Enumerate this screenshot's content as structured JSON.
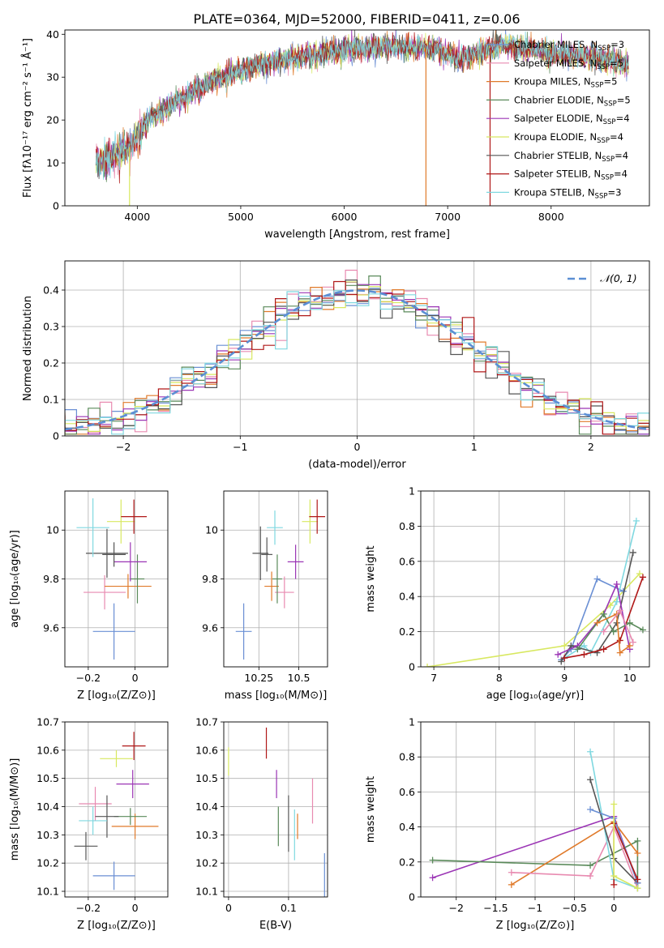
{
  "figure_title": "PLATE=0364, MJD=52000, FIBERID=0411, z=0.06",
  "colors": {
    "chabrier_miles": "#6a8fd4",
    "salpeter_miles": "#e88ab0",
    "kroupa_miles": "#e07a2a",
    "chabrier_elodie": "#5a8a5a",
    "salpeter_elodie": "#9b35b5",
    "kroupa_elodie": "#d8e860",
    "chabrier_stelib": "#555555",
    "salpeter_stelib": "#b01818",
    "kroupa_stelib": "#7fd8e0",
    "normal": "#5b8fd4"
  },
  "chart_data": [
    {
      "id": "spectrum",
      "type": "line",
      "xlabel": "wavelength [Angstrom, rest frame]",
      "ylabel": "Flux [fλ10⁻¹⁷ erg cm⁻² s⁻¹ Å⁻¹]",
      "xlim": [
        3300,
        8950
      ],
      "ylim": [
        0,
        41
      ],
      "xticks": [
        4000,
        5000,
        6000,
        7000,
        8000
      ],
      "yticks": [
        0,
        10,
        20,
        30,
        40
      ],
      "grid": false,
      "legend_position": "right",
      "continuum": {
        "x": [
          3600,
          3800,
          3950,
          4100,
          4300,
          4500,
          4800,
          5000,
          5200,
          5500,
          5800,
          6000,
          6300,
          6600,
          6900,
          7100,
          7300,
          7500,
          7800,
          8000,
          8200,
          8500,
          8700
        ],
        "y": [
          10,
          12,
          14,
          20,
          23,
          26,
          30,
          31.5,
          33,
          34.5,
          35.5,
          36.5,
          37,
          37,
          36.5,
          34,
          36,
          37.5,
          36.5,
          35.5,
          35,
          34.5,
          33
        ]
      },
      "spikes": [
        {
          "x": 3925,
          "y": 0
        },
        {
          "x": 6790,
          "y": 0
        },
        {
          "x": 7410,
          "y": 0
        }
      ],
      "series": [
        {
          "name": "Chabrier MILES, N$_{SSP}$=3",
          "label_main": "Chabrier MILES, N",
          "label_sub": "SSP",
          "label_end": "=3",
          "color_key": "chabrier_miles"
        },
        {
          "name": "Salpeter MILES, N$_{SSP}$=5",
          "label_main": "Salpeter MILES, N",
          "label_sub": "SSP",
          "label_end": "=5",
          "color_key": "salpeter_miles"
        },
        {
          "name": "Kroupa MILES, N$_{SSP}$=5",
          "label_main": "Kroupa MILES, N",
          "label_sub": "SSP",
          "label_end": "=5",
          "color_key": "kroupa_miles"
        },
        {
          "name": "Chabrier ELODIE, N$_{SSP}$=5",
          "label_main": "Chabrier ELODIE, N",
          "label_sub": "SSP",
          "label_end": "=5",
          "color_key": "chabrier_elodie"
        },
        {
          "name": "Salpeter ELODIE, N$_{SSP}$=4",
          "label_main": "Salpeter ELODIE, N",
          "label_sub": "SSP",
          "label_end": "=4",
          "color_key": "salpeter_elodie"
        },
        {
          "name": "Kroupa ELODIE, N$_{SSP}$=4",
          "label_main": "Kroupa ELODIE, N",
          "label_sub": "SSP",
          "label_end": "=4",
          "color_key": "kroupa_elodie"
        },
        {
          "name": "Chabrier STELIB, N$_{SSP}$=4",
          "label_main": "Chabrier STELIB, N",
          "label_sub": "SSP",
          "label_end": "=4",
          "color_key": "chabrier_stelib"
        },
        {
          "name": "Salpeter STELIB, N$_{SSP}$=4",
          "label_main": "Salpeter STELIB, N",
          "label_sub": "SSP",
          "label_end": "=4",
          "color_key": "salpeter_stelib"
        },
        {
          "name": "Kroupa STELIB, N$_{SSP}$=3",
          "label_main": "Kroupa STELIB, N",
          "label_sub": "SSP",
          "label_end": "=3",
          "color_key": "kroupa_stelib"
        }
      ]
    },
    {
      "id": "residuals",
      "type": "histogram",
      "xlabel": "(data-model)/error",
      "ylabel": "Normed distribution",
      "xlim": [
        -2.5,
        2.5
      ],
      "ylim": [
        0,
        0.48
      ],
      "xticks": [
        -2,
        -1,
        0,
        1,
        2
      ],
      "yticks": [
        0.0,
        0.1,
        0.2,
        0.3,
        0.4
      ],
      "grid": true,
      "bin_width": 0.1,
      "legend": {
        "label": "𝒩(0, 1)",
        "position": "top-right",
        "style": "dashed",
        "color_key": "normal"
      },
      "model": {
        "type": "gaussian",
        "mean": 0,
        "sigma": 1
      }
    },
    {
      "id": "age_vs_Z",
      "type": "errorbar",
      "xlabel": "Z [log₁₀(Z/Z⊙)]",
      "ylabel": "age  [log₁₀(age/yr)]",
      "xlim": [
        -0.3,
        0.14
      ],
      "ylim": [
        9.44,
        10.16
      ],
      "xticks": [
        -0.2,
        0.0
      ],
      "yticks": [
        9.6,
        9.8,
        10.0
      ],
      "grid": true,
      "points": [
        {
          "color_key": "chabrier_miles",
          "x": -0.09,
          "xerr": 0.09,
          "y": 9.585,
          "yerr": 0.115
        },
        {
          "color_key": "salpeter_miles",
          "x": -0.13,
          "xerr": 0.09,
          "y": 9.745,
          "yerr": 0.07
        },
        {
          "color_key": "kroupa_miles",
          "x": -0.03,
          "xerr": 0.1,
          "y": 9.77,
          "yerr": 0.05
        },
        {
          "color_key": "chabrier_elodie",
          "x": 0.01,
          "xerr": 0.03,
          "y": 9.8,
          "yerr": 0.1
        },
        {
          "color_key": "salpeter_elodie",
          "x": -0.02,
          "xerr": 0.07,
          "y": 9.87,
          "yerr": 0.08
        },
        {
          "color_key": "kroupa_elodie",
          "x": -0.06,
          "xerr": 0.06,
          "y": 10.035,
          "yerr": 0.09
        },
        {
          "color_key": "chabrier_stelib",
          "x": -0.09,
          "xerr": 0.05,
          "y": 9.9,
          "yerr": 0.05
        },
        {
          "color_key": "chabrier_stelib",
          "x": -0.12,
          "xerr": 0.09,
          "y": 9.905,
          "yerr": 0.1
        },
        {
          "color_key": "salpeter_stelib",
          "x": -0.005,
          "xerr": 0.055,
          "y": 10.055,
          "yerr": 0.07
        },
        {
          "color_key": "kroupa_stelib",
          "x": -0.18,
          "xerr": 0.07,
          "y": 10.01,
          "yerr": 0.12
        }
      ]
    },
    {
      "id": "age_vs_mass",
      "type": "errorbar",
      "xlabel": "mass [log₁₀(M/M⊙)]",
      "ylabel": "",
      "xlim": [
        10.03,
        10.68
      ],
      "ylim": [
        9.44,
        10.16
      ],
      "xticks": [
        10.25,
        10.5
      ],
      "yticks": [
        9.6,
        9.8,
        10.0
      ],
      "grid": true,
      "points": [
        {
          "color_key": "chabrier_miles",
          "x": 10.155,
          "xerr": 0.05,
          "y": 9.585,
          "yerr": 0.115
        },
        {
          "color_key": "salpeter_miles",
          "x": 10.41,
          "xerr": 0.06,
          "y": 9.745,
          "yerr": 0.065
        },
        {
          "color_key": "kroupa_miles",
          "x": 10.33,
          "xerr": 0.045,
          "y": 9.77,
          "yerr": 0.06
        },
        {
          "color_key": "chabrier_elodie",
          "x": 10.365,
          "xerr": 0.03,
          "y": 9.8,
          "yerr": 0.1
        },
        {
          "color_key": "salpeter_elodie",
          "x": 10.48,
          "xerr": 0.05,
          "y": 9.87,
          "yerr": 0.07
        },
        {
          "color_key": "kroupa_elodie",
          "x": 10.57,
          "xerr": 0.05,
          "y": 10.035,
          "yerr": 0.09
        },
        {
          "color_key": "chabrier_stelib",
          "x": 10.3,
          "xerr": 0.035,
          "y": 9.9,
          "yerr": 0.07
        },
        {
          "color_key": "chabrier_stelib",
          "x": 10.26,
          "xerr": 0.05,
          "y": 9.905,
          "yerr": 0.11
        },
        {
          "color_key": "salpeter_stelib",
          "x": 10.615,
          "xerr": 0.05,
          "y": 10.055,
          "yerr": 0.07
        },
        {
          "color_key": "kroupa_stelib",
          "x": 10.35,
          "xerr": 0.05,
          "y": 10.01,
          "yerr": 0.07
        }
      ]
    },
    {
      "id": "weight_vs_age",
      "type": "line",
      "xlabel": "age  [log₁₀(age/yr)]",
      "ylabel": "mass weight",
      "xlim": [
        6.8,
        10.3
      ],
      "ylim": [
        0,
        1.0
      ],
      "xticks": [
        7,
        8,
        9,
        10
      ],
      "yticks": [
        0.0,
        0.2,
        0.4,
        0.6,
        0.8,
        1.0
      ],
      "grid": true,
      "series": [
        {
          "color_key": "kroupa_elodie",
          "x": [
            6.9,
            9.0,
            9.7,
            10.15
          ],
          "y": [
            0.0,
            0.12,
            0.35,
            0.53
          ]
        },
        {
          "color_key": "chabrier_miles",
          "x": [
            8.95,
            9.1,
            9.5,
            9.9
          ],
          "y": [
            0.04,
            0.1,
            0.5,
            0.43
          ]
        },
        {
          "color_key": "kroupa_stelib",
          "x": [
            9.0,
            9.3,
            9.4,
            9.8,
            10.1
          ],
          "y": [
            0.05,
            0.12,
            0.08,
            0.37,
            0.83
          ]
        },
        {
          "color_key": "chabrier_stelib",
          "x": [
            8.95,
            9.1,
            9.5,
            9.8,
            10.05
          ],
          "y": [
            0.03,
            0.12,
            0.08,
            0.25,
            0.65
          ]
        },
        {
          "color_key": "salpeter_stelib",
          "x": [
            9.0,
            9.3,
            9.6,
            9.85,
            10.2
          ],
          "y": [
            0.05,
            0.07,
            0.1,
            0.15,
            0.51
          ]
        },
        {
          "color_key": "salpeter_elodie",
          "x": [
            8.9,
            9.2,
            9.6,
            9.8,
            10.0
          ],
          "y": [
            0.07,
            0.12,
            0.3,
            0.47,
            0.1
          ]
        },
        {
          "color_key": "chabrier_elodie",
          "x": [
            9.2,
            9.6,
            9.75,
            10.0,
            10.2
          ],
          "y": [
            0.1,
            0.3,
            0.2,
            0.25,
            0.21
          ]
        },
        {
          "color_key": "kroupa_miles",
          "x": [
            9.5,
            9.8,
            9.85,
            10.0
          ],
          "y": [
            0.25,
            0.3,
            0.08,
            0.12
          ]
        },
        {
          "color_key": "salpeter_miles",
          "x": [
            9.6,
            9.85,
            10.05
          ],
          "y": [
            0.2,
            0.32,
            0.14
          ]
        }
      ]
    },
    {
      "id": "mass_vs_Z",
      "type": "errorbar",
      "xlabel": "Z [log₁₀(Z/Z⊙)]",
      "ylabel": "mass [log₁₀(M/M⊙)]",
      "xlim": [
        -0.3,
        0.14
      ],
      "ylim": [
        10.08,
        10.7
      ],
      "xticks": [
        -0.2,
        0.0
      ],
      "yticks": [
        10.1,
        10.2,
        10.3,
        10.4,
        10.5,
        10.6,
        10.7
      ],
      "grid": true,
      "points": [
        {
          "color_key": "chabrier_miles",
          "x": -0.09,
          "xerr": 0.09,
          "y": 10.155,
          "yerr": 0.05
        },
        {
          "color_key": "salpeter_miles",
          "x": -0.17,
          "xerr": 0.07,
          "y": 10.41,
          "yerr": 0.06
        },
        {
          "color_key": "kroupa_miles",
          "x": 0.0,
          "xerr": 0.1,
          "y": 10.33,
          "yerr": 0.045
        },
        {
          "color_key": "chabrier_elodie",
          "x": -0.02,
          "xerr": 0.07,
          "y": 10.365,
          "yerr": 0.03
        },
        {
          "color_key": "salpeter_elodie",
          "x": -0.01,
          "xerr": 0.07,
          "y": 10.48,
          "yerr": 0.05
        },
        {
          "color_key": "kroupa_elodie",
          "x": -0.08,
          "xerr": 0.07,
          "y": 10.57,
          "yerr": 0.03
        },
        {
          "color_key": "chabrier_stelib",
          "x": -0.12,
          "xerr": 0.05,
          "y": 10.365,
          "yerr": 0.075
        },
        {
          "color_key": "chabrier_stelib",
          "x": -0.21,
          "xerr": 0.05,
          "y": 10.26,
          "yerr": 0.05
        },
        {
          "color_key": "salpeter_stelib",
          "x": -0.005,
          "xerr": 0.05,
          "y": 10.615,
          "yerr": 0.05
        },
        {
          "color_key": "kroupa_stelib",
          "x": -0.18,
          "xerr": 0.06,
          "y": 10.35,
          "yerr": 0.05
        }
      ]
    },
    {
      "id": "mass_vs_ebv",
      "type": "errorbar",
      "xlabel": "E(B-V)",
      "ylabel": "",
      "xlim": [
        -0.008,
        0.165
      ],
      "ylim": [
        10.08,
        10.7
      ],
      "xticks": [
        0.0,
        0.1
      ],
      "yticks": [
        10.1,
        10.2,
        10.3,
        10.4,
        10.5,
        10.6,
        10.7
      ],
      "grid": true,
      "points": [
        {
          "color_key": "chabrier_miles",
          "x": 0.16,
          "xerr": 0,
          "y": 10.155,
          "yerr": 0.08
        },
        {
          "color_key": "salpeter_miles",
          "x": 0.14,
          "xerr": 0,
          "y": 10.42,
          "yerr": 0.08
        },
        {
          "color_key": "kroupa_miles",
          "x": 0.115,
          "xerr": 0,
          "y": 10.33,
          "yerr": 0.045
        },
        {
          "color_key": "chabrier_elodie",
          "x": 0.083,
          "xerr": 0,
          "y": 10.33,
          "yerr": 0.07
        },
        {
          "color_key": "salpeter_elodie",
          "x": 0.08,
          "xerr": 0,
          "y": 10.48,
          "yerr": 0.05
        },
        {
          "color_key": "kroupa_elodie",
          "x": 0.0,
          "xerr": 0,
          "y": 10.56,
          "yerr": 0.05
        },
        {
          "color_key": "chabrier_stelib",
          "x": 0.1,
          "xerr": 0,
          "y": 10.34,
          "yerr": 0.1
        },
        {
          "color_key": "salpeter_stelib",
          "x": 0.063,
          "xerr": 0,
          "y": 10.625,
          "yerr": 0.055
        },
        {
          "color_key": "kroupa_stelib",
          "x": 0.11,
          "xerr": 0,
          "y": 10.3,
          "yerr": 0.09
        }
      ]
    },
    {
      "id": "weight_vs_Z",
      "type": "line",
      "xlabel": "Z [log₁₀(Z/Z⊙)]",
      "ylabel": "mass weight",
      "xlim": [
        -2.45,
        0.45
      ],
      "ylim": [
        0,
        1.0
      ],
      "xticks": [
        -2.0,
        -1.5,
        -1.0,
        -0.5,
        0.0
      ],
      "yticks": [
        0.0,
        0.2,
        0.4,
        0.6,
        0.8,
        1.0
      ],
      "grid": true,
      "series": [
        {
          "color_key": "salpeter_elodie",
          "x": [
            -2.3,
            0.0,
            0.3
          ],
          "y": [
            0.11,
            0.46,
            0.08
          ]
        },
        {
          "color_key": "chabrier_elodie",
          "x": [
            -2.3,
            -0.3,
            0.3,
            0.3
          ],
          "y": [
            0.21,
            0.18,
            0.32,
            0.05
          ]
        },
        {
          "color_key": "kroupa_miles",
          "x": [
            -1.3,
            0.0,
            0.3
          ],
          "y": [
            0.07,
            0.43,
            0.25
          ]
        },
        {
          "color_key": "salpeter_miles",
          "x": [
            -1.3,
            -0.3,
            0.0,
            0.3
          ],
          "y": [
            0.14,
            0.12,
            0.4,
            0.05
          ]
        },
        {
          "color_key": "kroupa_stelib",
          "x": [
            -0.3,
            0.0,
            0.3
          ],
          "y": [
            0.83,
            0.1,
            0.05
          ]
        },
        {
          "color_key": "chabrier_stelib",
          "x": [
            -0.3,
            0.0,
            0.3
          ],
          "y": [
            0.67,
            0.22,
            0.08
          ]
        },
        {
          "color_key": "chabrier_miles",
          "x": [
            -0.3,
            0.0,
            0.3
          ],
          "y": [
            0.5,
            0.45,
            0.08
          ]
        },
        {
          "color_key": "salpeter_stelib",
          "x": [
            0.0,
            0.0,
            0.3
          ],
          "y": [
            0.07,
            0.42,
            0.1
          ]
        },
        {
          "color_key": "kroupa_elodie",
          "x": [
            0.0,
            0.0,
            0.3
          ],
          "y": [
            0.53,
            0.12,
            0.05
          ]
        }
      ]
    }
  ]
}
